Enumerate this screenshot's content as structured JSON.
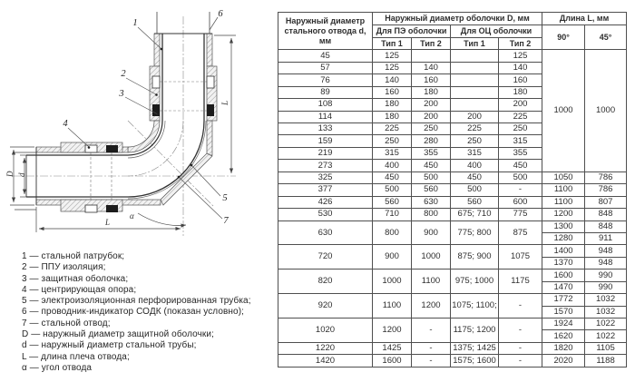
{
  "diagram": {
    "callouts": {
      "c1": "1",
      "c2": "2",
      "c3": "3",
      "c4": "4",
      "c5": "5",
      "c6": "6",
      "c7": "7"
    },
    "dimensions": {
      "D": "D",
      "d": "d",
      "L_right": "L",
      "L_bottom": "L",
      "alpha": "α"
    }
  },
  "legend": {
    "items": [
      "1 — стальной патрубок;",
      "2 — ППУ изоляция;",
      "3 — защитная оболочка;",
      "4 — центрирующая опора;",
      "5 — электроизоляционная перфорированная трубка;",
      "6 — проводник-индикатор СОДК (показан условно);",
      "7 — стальной отвод;",
      "D — наружный диаметр защитной оболочки;",
      "d — наружный диаметр стальной трубы;",
      "L — длина плеча отвода;",
      "α — угол отвода"
    ]
  },
  "table": {
    "header": {
      "col_d": "Наружный диаметр стального отвода d, мм",
      "group_D": "Наружный диаметр оболочки D, мм",
      "group_pe": "Для ПЭ оболочки",
      "group_oc": "Для ОЦ оболочки",
      "type1": "Тип 1",
      "type2": "Тип 2",
      "group_L": "Длина L, мм",
      "deg90": "90°",
      "deg45": "45°"
    },
    "rows": [
      [
        "45",
        "125",
        "",
        "",
        "125",
        {
          "t": "1000",
          "rs": 10
        },
        {
          "t": "1000",
          "rs": 10
        }
      ],
      [
        "57",
        "125",
        "140",
        "",
        "140"
      ],
      [
        "76",
        "140",
        "160",
        "",
        "160"
      ],
      [
        "89",
        "160",
        "180",
        "",
        "180"
      ],
      [
        "108",
        "180",
        "200",
        "",
        "200"
      ],
      [
        "114",
        "180",
        "200",
        "200",
        "225"
      ],
      [
        "133",
        "225",
        "250",
        "225",
        "250"
      ],
      [
        "159",
        "250",
        "280",
        "250",
        "315"
      ],
      [
        "219",
        "315",
        "355",
        "315",
        "355"
      ],
      [
        "273",
        "400",
        "450",
        "400",
        "450"
      ],
      [
        "325",
        "450",
        "500",
        "450",
        "500",
        "1050",
        "786"
      ],
      [
        "377",
        "500",
        "560",
        "500",
        "-",
        "1100",
        "786"
      ],
      [
        "426",
        "560",
        "630",
        "560",
        "600",
        "1100",
        "807"
      ],
      [
        "530",
        "710",
        "800",
        "675; 710",
        "775",
        "1200",
        "848"
      ],
      [
        {
          "t": "630",
          "rs": 2
        },
        {
          "t": "800",
          "rs": 2
        },
        {
          "t": "900",
          "rs": 2
        },
        {
          "t": "775; 800",
          "rs": 2
        },
        {
          "t": "875",
          "rs": 2
        },
        "1300",
        "848"
      ],
      [
        "1280",
        "911"
      ],
      [
        {
          "t": "720",
          "rs": 2
        },
        {
          "t": "900",
          "rs": 2
        },
        {
          "t": "1000",
          "rs": 2
        },
        {
          "t": "875; 900",
          "rs": 2
        },
        {
          "t": "1075",
          "rs": 2
        },
        "1400",
        "948"
      ],
      [
        "1370",
        "948"
      ],
      [
        {
          "t": "820",
          "rs": 2
        },
        {
          "t": "1000",
          "rs": 2
        },
        {
          "t": "1100",
          "rs": 2
        },
        {
          "t": "975; 1000",
          "rs": 2
        },
        {
          "t": "1175",
          "rs": 2
        },
        "1600",
        "990"
      ],
      [
        "1470",
        "990"
      ],
      [
        {
          "t": "920",
          "rs": 2
        },
        {
          "t": "1100",
          "rs": 2
        },
        {
          "t": "1200",
          "rs": 2
        },
        {
          "t": "1075; 1100;",
          "rs": 2
        },
        {
          "t": "-",
          "rs": 2
        },
        "1772",
        "1032"
      ],
      [
        "1570",
        "1032"
      ],
      [
        {
          "t": "1020",
          "rs": 2
        },
        {
          "t": "1200",
          "rs": 2
        },
        {
          "t": "-",
          "rs": 2
        },
        {
          "t": "1175; 1200",
          "rs": 2
        },
        {
          "t": "-",
          "rs": 2
        },
        "1924",
        "1022"
      ],
      [
        "1620",
        "1022"
      ],
      [
        "1220",
        "1425",
        "-",
        "1375; 1425",
        "-",
        "1820",
        "1105"
      ],
      [
        "1420",
        "1600",
        "-",
        "1575; 1600",
        "-",
        "2020",
        "1188"
      ]
    ]
  },
  "colors": {
    "line": "#4f4f4f",
    "text": "#2e2e2e",
    "steel": "#333333"
  }
}
